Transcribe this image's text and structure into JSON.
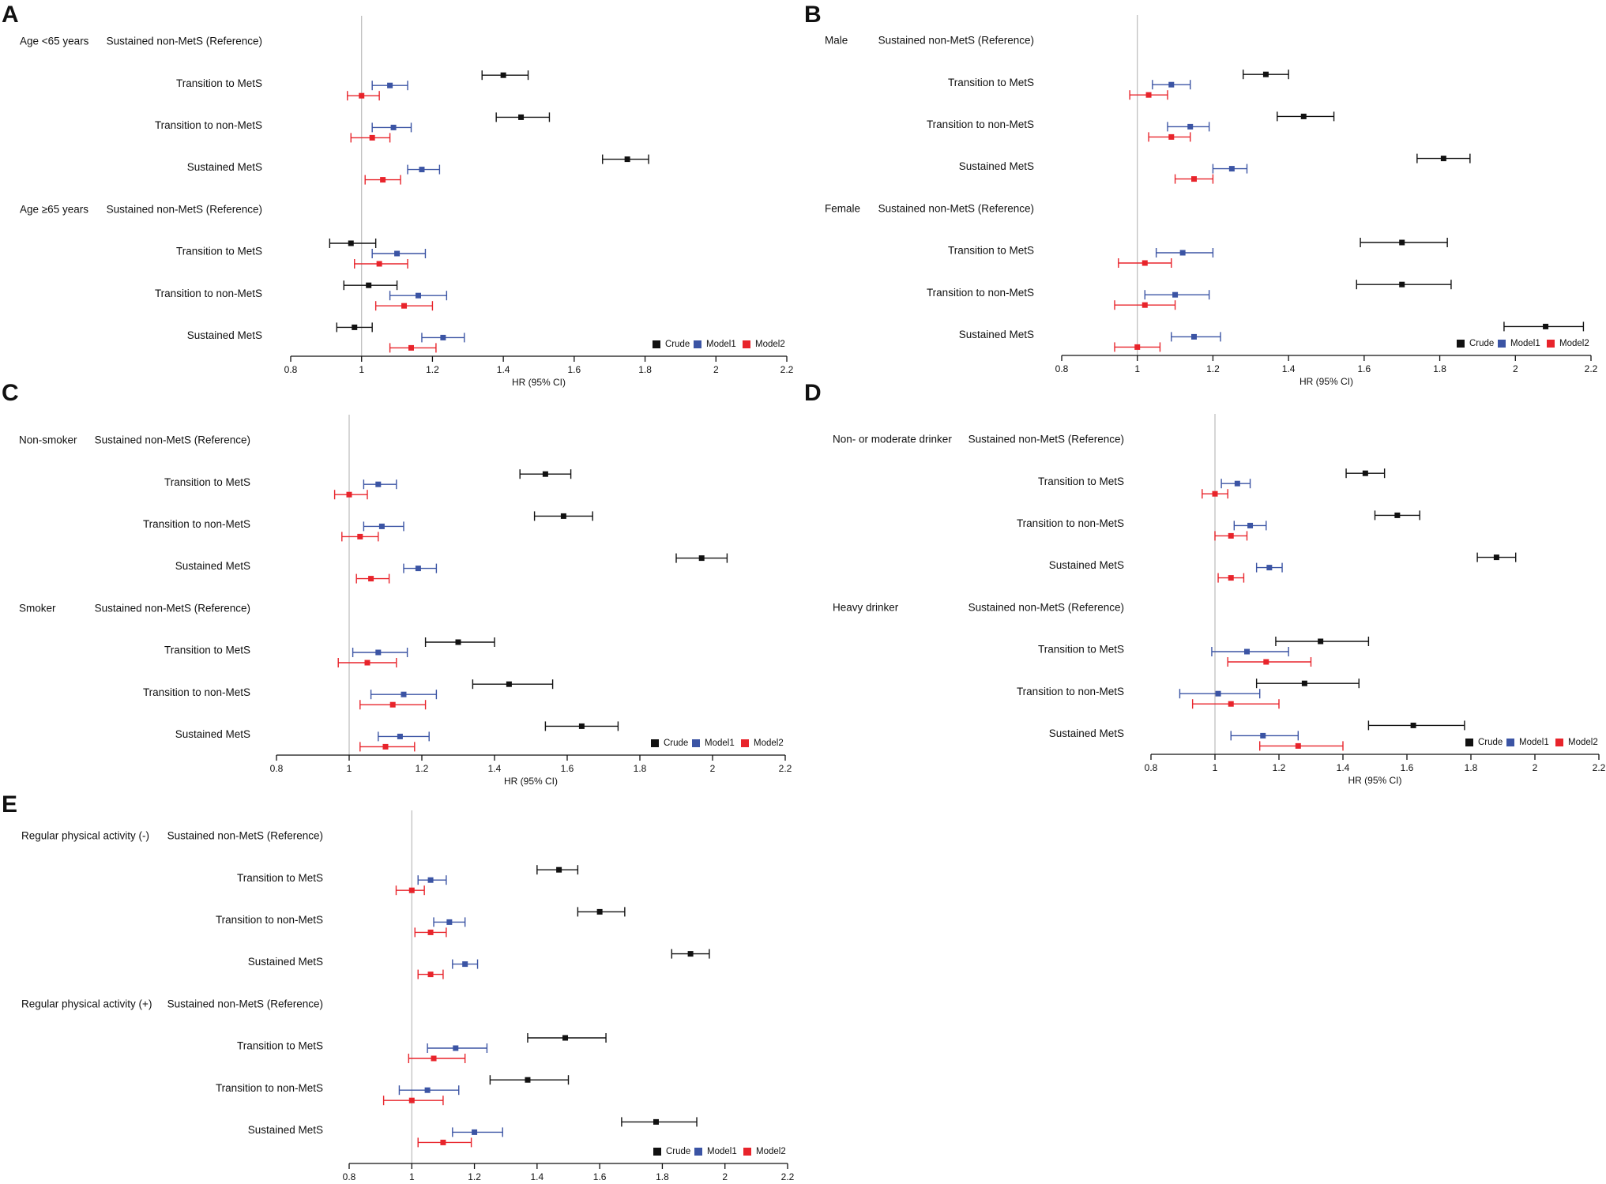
{
  "figure": {
    "colors": {
      "Crude": "#111111",
      "Model1": "#3b54a4",
      "Model2": "#e8242b",
      "refline": "#bbbbbb"
    }
  },
  "chart_data": [
    {
      "panel": "A",
      "type": "forest",
      "xlabel": "HR (95% CI)",
      "xlim": [
        0.8,
        2.2
      ],
      "ticks": [
        0.8,
        1,
        1.2,
        1.4,
        1.6,
        1.8,
        2,
        2.2
      ],
      "legend": [
        "Crude",
        "Model1",
        "Model2"
      ],
      "groups": [
        {
          "name": "Age <65 years",
          "rows": [
            {
              "label": "Sustained non-MetS (Reference)"
            },
            {
              "label": "Transition to MetS",
              "Crude": [
                1.4,
                1.34,
                1.47
              ],
              "Model1": [
                1.08,
                1.03,
                1.13
              ],
              "Model2": [
                1.0,
                0.96,
                1.05
              ]
            },
            {
              "label": "Transition to non-MetS",
              "Crude": [
                1.45,
                1.38,
                1.53
              ],
              "Model1": [
                1.09,
                1.03,
                1.14
              ],
              "Model2": [
                1.03,
                0.97,
                1.08
              ]
            },
            {
              "label": "Sustained MetS",
              "Crude": [
                1.75,
                1.68,
                1.81
              ],
              "Model1": [
                1.17,
                1.13,
                1.22
              ],
              "Model2": [
                1.06,
                1.01,
                1.11
              ]
            }
          ]
        },
        {
          "name": "Age ≥65 years",
          "rows": [
            {
              "label": "Sustained non-MetS (Reference)"
            },
            {
              "label": "Transition to MetS",
              "Crude": [
                0.97,
                0.91,
                1.04
              ],
              "Model1": [
                1.1,
                1.03,
                1.18
              ],
              "Model2": [
                1.05,
                0.98,
                1.13
              ]
            },
            {
              "label": "Transition to non-MetS",
              "Crude": [
                1.02,
                0.95,
                1.1
              ],
              "Model1": [
                1.16,
                1.08,
                1.24
              ],
              "Model2": [
                1.12,
                1.04,
                1.2
              ]
            },
            {
              "label": "Sustained MetS",
              "Crude": [
                0.98,
                0.93,
                1.03
              ],
              "Model1": [
                1.23,
                1.17,
                1.29
              ],
              "Model2": [
                1.14,
                1.08,
                1.21
              ]
            }
          ]
        }
      ]
    },
    {
      "panel": "B",
      "type": "forest",
      "xlabel": "HR (95% CI)",
      "xlim": [
        0.8,
        2.2
      ],
      "ticks": [
        0.8,
        1,
        1.2,
        1.4,
        1.6,
        1.8,
        2,
        2.2
      ],
      "legend": [
        "Crude",
        "Model1",
        "Model2"
      ],
      "groups": [
        {
          "name": "Male",
          "rows": [
            {
              "label": "Sustained non-MetS (Reference)"
            },
            {
              "label": "Transition to MetS",
              "Crude": [
                1.34,
                1.28,
                1.4
              ],
              "Model1": [
                1.09,
                1.04,
                1.14
              ],
              "Model2": [
                1.03,
                0.98,
                1.08
              ]
            },
            {
              "label": "Transition to non-MetS",
              "Crude": [
                1.44,
                1.37,
                1.52
              ],
              "Model1": [
                1.14,
                1.08,
                1.19
              ],
              "Model2": [
                1.09,
                1.03,
                1.14
              ]
            },
            {
              "label": "Sustained MetS",
              "Crude": [
                1.81,
                1.74,
                1.88
              ],
              "Model1": [
                1.25,
                1.2,
                1.29
              ],
              "Model2": [
                1.15,
                1.1,
                1.2
              ]
            }
          ]
        },
        {
          "name": "Female",
          "rows": [
            {
              "label": "Sustained non-MetS (Reference)"
            },
            {
              "label": "Transition to MetS",
              "Crude": [
                1.7,
                1.59,
                1.82
              ],
              "Model1": [
                1.12,
                1.05,
                1.2
              ],
              "Model2": [
                1.02,
                0.95,
                1.09
              ]
            },
            {
              "label": "Transition to non-MetS",
              "Crude": [
                1.7,
                1.58,
                1.83
              ],
              "Model1": [
                1.1,
                1.02,
                1.19
              ],
              "Model2": [
                1.02,
                0.94,
                1.1
              ]
            },
            {
              "label": "Sustained MetS",
              "Crude": [
                2.08,
                1.97,
                2.18
              ],
              "Model1": [
                1.15,
                1.09,
                1.22
              ],
              "Model2": [
                1.0,
                0.94,
                1.06
              ]
            }
          ]
        }
      ]
    },
    {
      "panel": "C",
      "type": "forest",
      "xlabel": "HR (95% CI)",
      "xlim": [
        0.8,
        2.2
      ],
      "ticks": [
        0.8,
        1,
        1.2,
        1.4,
        1.6,
        1.8,
        2,
        2.2
      ],
      "legend": [
        "Crude",
        "Model1",
        "Model2"
      ],
      "groups": [
        {
          "name": "Non-smoker",
          "rows": [
            {
              "label": "Sustained non-MetS (Reference)"
            },
            {
              "label": "Transition to MetS",
              "Crude": [
                1.54,
                1.47,
                1.61
              ],
              "Model1": [
                1.08,
                1.04,
                1.13
              ],
              "Model2": [
                1.0,
                0.96,
                1.05
              ]
            },
            {
              "label": "Transition to non-MetS",
              "Crude": [
                1.59,
                1.51,
                1.67
              ],
              "Model1": [
                1.09,
                1.04,
                1.15
              ],
              "Model2": [
                1.03,
                0.98,
                1.08
              ]
            },
            {
              "label": "Sustained MetS",
              "Crude": [
                1.97,
                1.9,
                2.04
              ],
              "Model1": [
                1.19,
                1.15,
                1.24
              ],
              "Model2": [
                1.06,
                1.02,
                1.11
              ]
            }
          ]
        },
        {
          "name": "Smoker",
          "rows": [
            {
              "label": "Sustained non-MetS (Reference)"
            },
            {
              "label": "Transition to MetS",
              "Crude": [
                1.3,
                1.21,
                1.4
              ],
              "Model1": [
                1.08,
                1.01,
                1.16
              ],
              "Model2": [
                1.05,
                0.97,
                1.13
              ]
            },
            {
              "label": "Transition to non-MetS",
              "Crude": [
                1.44,
                1.34,
                1.56
              ],
              "Model1": [
                1.15,
                1.06,
                1.24
              ],
              "Model2": [
                1.12,
                1.03,
                1.21
              ]
            },
            {
              "label": "Sustained MetS",
              "Crude": [
                1.64,
                1.54,
                1.74
              ],
              "Model1": [
                1.14,
                1.08,
                1.22
              ],
              "Model2": [
                1.1,
                1.03,
                1.18
              ]
            }
          ]
        }
      ]
    },
    {
      "panel": "D",
      "type": "forest",
      "xlabel": "HR (95% CI)",
      "xlim": [
        0.8,
        2.2
      ],
      "ticks": [
        0.8,
        1,
        1.2,
        1.4,
        1.6,
        1.8,
        2,
        2.2
      ],
      "legend": [
        "Crude",
        "Model1",
        "Model2"
      ],
      "groups": [
        {
          "name": "Non- or moderate drinker",
          "rows": [
            {
              "label": "Sustained non-MetS (Reference)"
            },
            {
              "label": "Transition to MetS",
              "Crude": [
                1.47,
                1.41,
                1.53
              ],
              "Model1": [
                1.07,
                1.02,
                1.11
              ],
              "Model2": [
                1.0,
                0.96,
                1.04
              ]
            },
            {
              "label": "Transition to non-MetS",
              "Crude": [
                1.57,
                1.5,
                1.64
              ],
              "Model1": [
                1.11,
                1.06,
                1.16
              ],
              "Model2": [
                1.05,
                1.0,
                1.1
              ]
            },
            {
              "label": "Sustained MetS",
              "Crude": [
                1.88,
                1.82,
                1.94
              ],
              "Model1": [
                1.17,
                1.13,
                1.21
              ],
              "Model2": [
                1.05,
                1.01,
                1.09
              ]
            }
          ]
        },
        {
          "name": "Heavy drinker",
          "rows": [
            {
              "label": "Sustained non-MetS (Reference)"
            },
            {
              "label": "Transition to MetS",
              "Crude": [
                1.33,
                1.19,
                1.48
              ],
              "Model1": [
                1.1,
                0.99,
                1.23
              ],
              "Model2": [
                1.16,
                1.04,
                1.3
              ]
            },
            {
              "label": "Transition to non-MetS",
              "Crude": [
                1.28,
                1.13,
                1.45
              ],
              "Model1": [
                1.01,
                0.89,
                1.14
              ],
              "Model2": [
                1.05,
                0.93,
                1.2
              ]
            },
            {
              "label": "Sustained MetS",
              "Crude": [
                1.62,
                1.48,
                1.78
              ],
              "Model1": [
                1.15,
                1.05,
                1.26
              ],
              "Model2": [
                1.26,
                1.14,
                1.4
              ]
            }
          ]
        }
      ]
    },
    {
      "panel": "E",
      "type": "forest",
      "xlabel": "HR (95% CI)",
      "xlim": [
        0.8,
        2.2
      ],
      "ticks": [
        0.8,
        1,
        1.2,
        1.4,
        1.6,
        1.8,
        2,
        2.2
      ],
      "legend": [
        "Crude",
        "Model1",
        "Model2"
      ],
      "groups": [
        {
          "name": "Regular physical activity (-)",
          "rows": [
            {
              "label": "Sustained non-MetS (Reference)"
            },
            {
              "label": "Transition to MetS",
              "Crude": [
                1.47,
                1.4,
                1.53
              ],
              "Model1": [
                1.06,
                1.02,
                1.11
              ],
              "Model2": [
                1.0,
                0.95,
                1.04
              ]
            },
            {
              "label": "Transition to non-MetS",
              "Crude": [
                1.6,
                1.53,
                1.68
              ],
              "Model1": [
                1.12,
                1.07,
                1.17
              ],
              "Model2": [
                1.06,
                1.01,
                1.11
              ]
            },
            {
              "label": "Sustained MetS",
              "Crude": [
                1.89,
                1.83,
                1.95
              ],
              "Model1": [
                1.17,
                1.13,
                1.21
              ],
              "Model2": [
                1.06,
                1.02,
                1.1
              ]
            }
          ]
        },
        {
          "name": "Regular physical activity (+)",
          "rows": [
            {
              "label": "Sustained non-MetS (Reference)"
            },
            {
              "label": "Transition to MetS",
              "Crude": [
                1.49,
                1.37,
                1.62
              ],
              "Model1": [
                1.14,
                1.05,
                1.24
              ],
              "Model2": [
                1.07,
                0.99,
                1.17
              ]
            },
            {
              "label": "Transition to non-MetS",
              "Crude": [
                1.37,
                1.25,
                1.5
              ],
              "Model1": [
                1.05,
                0.96,
                1.15
              ],
              "Model2": [
                1.0,
                0.91,
                1.1
              ]
            },
            {
              "label": "Sustained MetS",
              "Crude": [
                1.78,
                1.67,
                1.91
              ],
              "Model1": [
                1.2,
                1.13,
                1.29
              ],
              "Model2": [
                1.1,
                1.02,
                1.19
              ]
            }
          ]
        }
      ]
    }
  ]
}
